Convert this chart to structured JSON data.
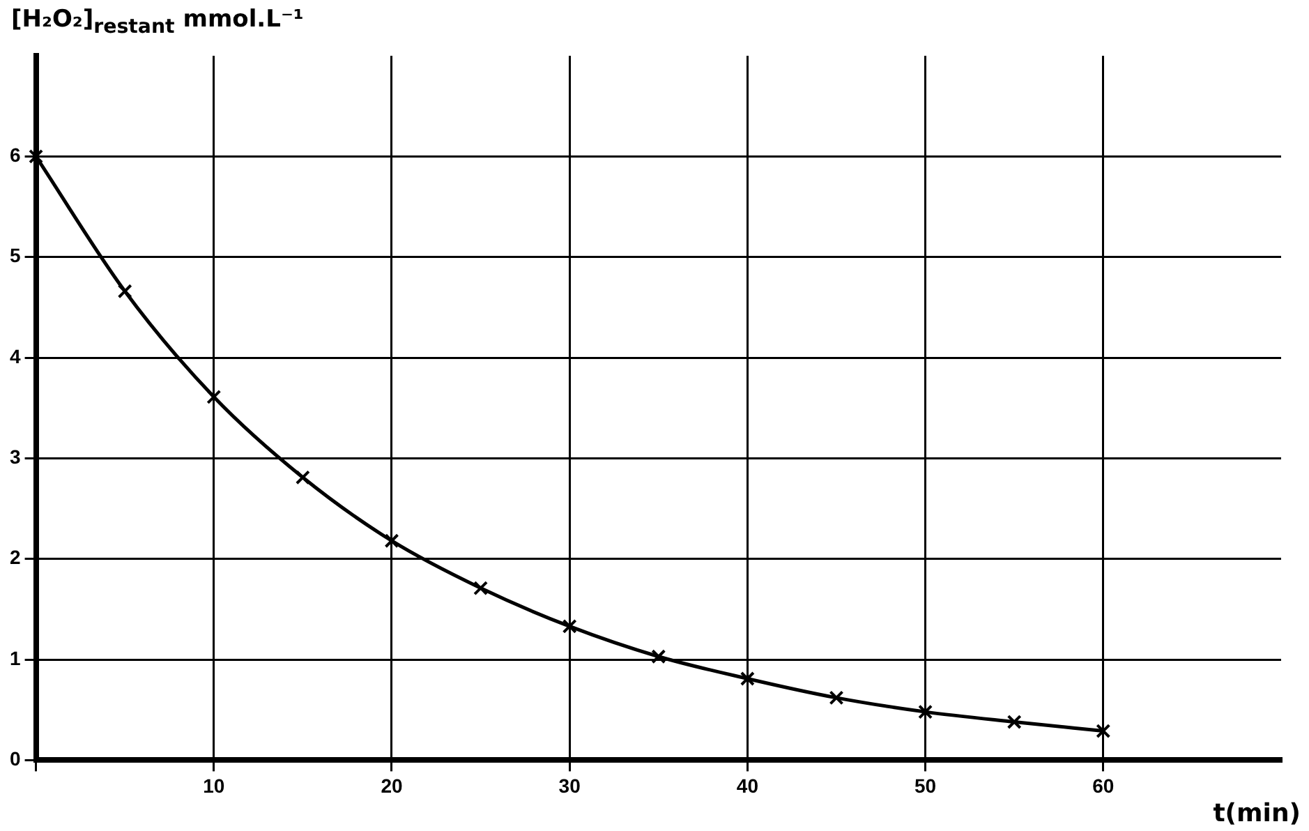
{
  "chart_data": {
    "type": "line",
    "ylabel": "[H₂O₂]$_{restant}$ mmol.L⁻¹",
    "xlabel": "t(min)",
    "x": [
      0,
      5,
      10,
      15,
      20,
      25,
      30,
      35,
      40,
      45,
      50,
      55,
      60
    ],
    "series": [
      {
        "color": "#000000",
        "values": [
          6,
          4.66,
          3.61,
          2.81,
          2.18,
          1.71,
          1.33,
          1.03,
          0.81,
          0.62,
          0.48,
          0.38,
          0.29
        ]
      }
    ],
    "xlim": [
      0,
      70
    ],
    "xticks": [
      {
        "value": 0,
        "label": null
      },
      10,
      20,
      30,
      40,
      50,
      60
    ],
    "ylim": [
      0,
      7
    ],
    "yticks": [
      0,
      1,
      2,
      3,
      4,
      5,
      6
    ],
    "grid": true,
    "legend": false,
    "marker": "cross",
    "line_style": "solid"
  }
}
